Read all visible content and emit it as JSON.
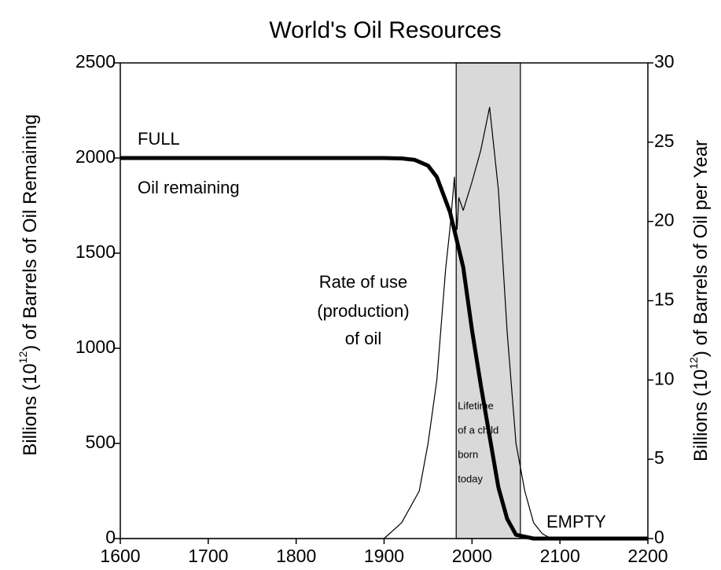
{
  "chart_data": {
    "type": "line",
    "title": "World's Oil Resources",
    "ylabel": {
      "prefix": "Billions (10",
      "sup": "12",
      "suffix": ") of Barrels of Oil Remaining"
    },
    "y2label": {
      "prefix": "Billions (10",
      "sup": "12",
      "suffix": ") of Barrels of Oil per Year"
    },
    "xlim": [
      1600,
      2200
    ],
    "xticks": [
      1600,
      1700,
      1800,
      1900,
      2000,
      2100,
      2200
    ],
    "ylim": [
      0,
      2500
    ],
    "yticks": [
      0,
      500,
      1000,
      1500,
      2000,
      2500
    ],
    "y2lim": [
      0,
      30
    ],
    "y2ticks": [
      0,
      5,
      10,
      15,
      20,
      25,
      30
    ],
    "grid": false,
    "series": [
      {
        "name": "Oil remaining",
        "color": "#000000",
        "width": 5,
        "x": [
          1600,
          1900,
          1920,
          1935,
          1950,
          1960,
          1975,
          1990,
          2000,
          2010,
          2020,
          2030,
          2040,
          2050,
          2070,
          2200
        ],
        "values": [
          2000,
          2000,
          1998,
          1990,
          1960,
          1900,
          1715,
          1426,
          1095,
          806,
          537,
          269,
          103,
          20,
          0,
          0
        ]
      },
      {
        "name": "Rate of use (production) of oil",
        "color": "#000000",
        "width": 1.2,
        "axis": "y2",
        "x": [
          1600,
          1900,
          1920,
          1940,
          1950,
          1960,
          1970,
          1975,
          1980,
          1983,
          1985,
          1990,
          2000,
          2010,
          2020,
          2030,
          2040,
          2050,
          2060,
          2070,
          2080,
          2090,
          2200
        ],
        "values": [
          0,
          0,
          1,
          3,
          6,
          10,
          17,
          19.6,
          22.8,
          19.5,
          21.5,
          20.7,
          22.5,
          24.5,
          27.2,
          22,
          13,
          6,
          3,
          1,
          0.3,
          0,
          0
        ]
      }
    ],
    "shade": {
      "xrange": [
        1982,
        2055
      ],
      "color": "#d9d9d9",
      "label": [
        "Lifetime",
        "of a child",
        "born",
        "today"
      ]
    },
    "annotations": [
      "FULL",
      "Oil remaining",
      "Rate of use",
      "(production)",
      "of oil",
      "EMPTY"
    ]
  }
}
